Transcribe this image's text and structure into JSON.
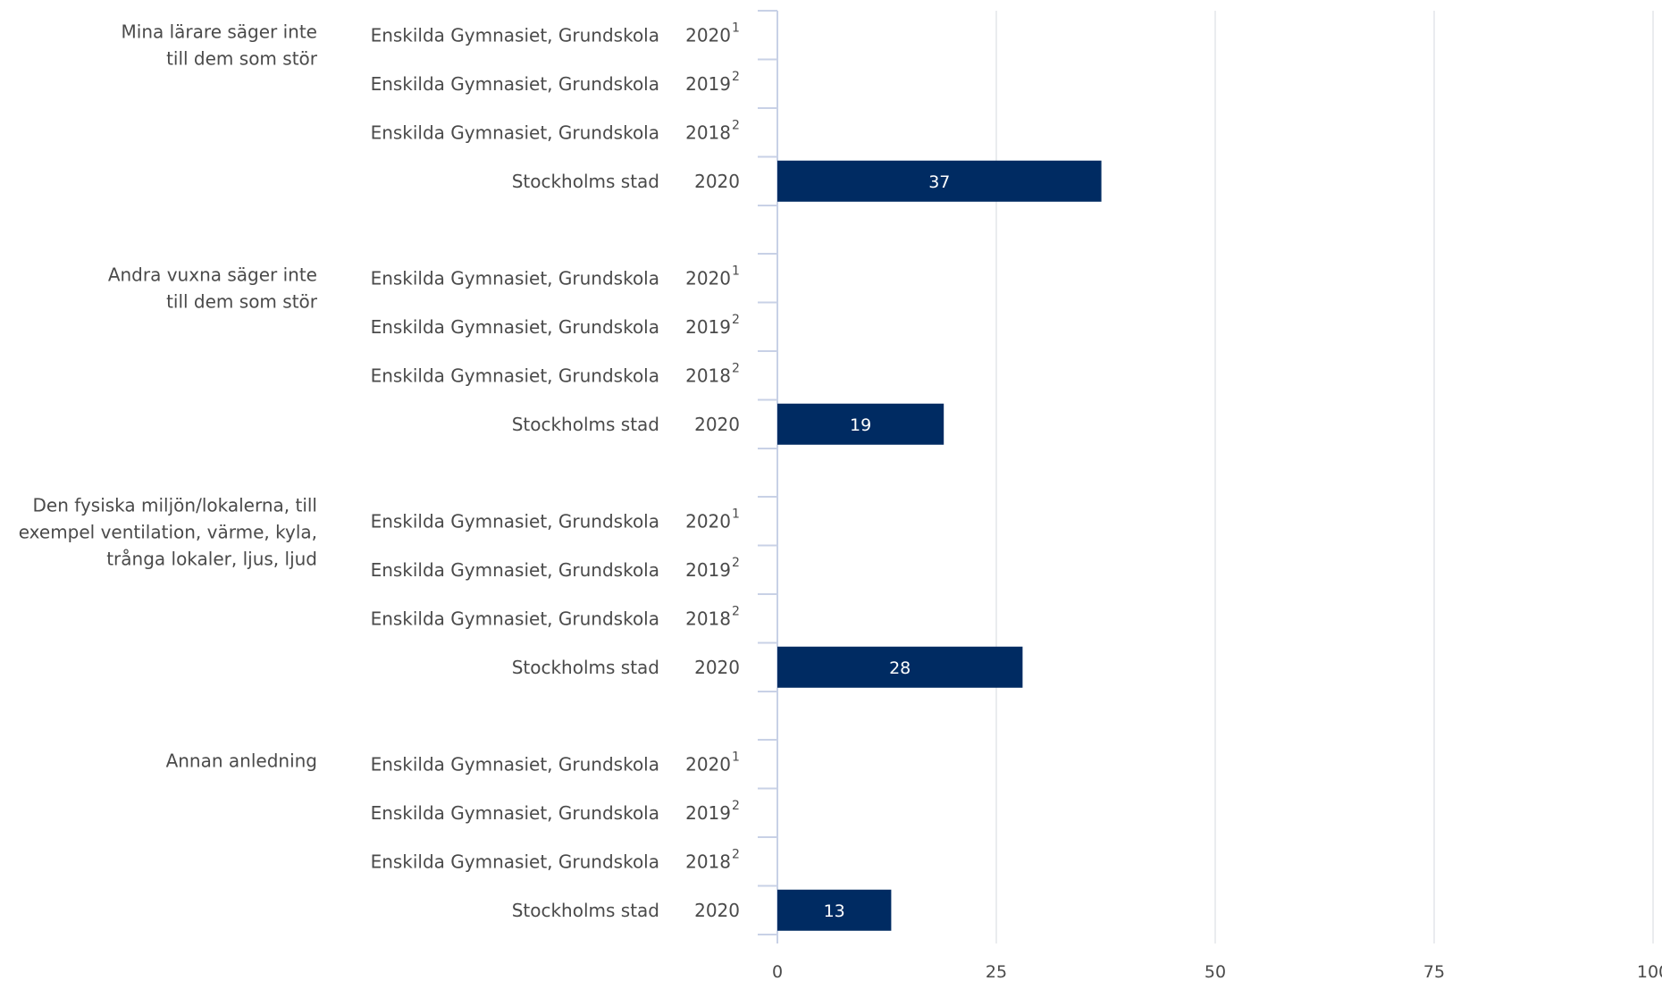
{
  "chart_data": {
    "type": "bar",
    "orientation": "horizontal",
    "xlim": [
      0,
      100
    ],
    "x_ticks": [
      "0",
      "25",
      "50",
      "75",
      "100"
    ],
    "grid": true,
    "bar_color": "#002b62",
    "groups": [
      {
        "label_lines": [
          "Mina lärare säger inte",
          "till dem som stör"
        ],
        "rows": [
          {
            "label": "Enskilda Gymnasiet, Grundskola",
            "year": "2020",
            "footnote": "1",
            "value": null
          },
          {
            "label": "Enskilda Gymnasiet, Grundskola",
            "year": "2019",
            "footnote": "2",
            "value": null
          },
          {
            "label": "Enskilda Gymnasiet, Grundskola",
            "year": "2018",
            "footnote": "2",
            "value": null
          },
          {
            "label": "Stockholms stad",
            "year": "2020",
            "footnote": "",
            "value": 37
          }
        ]
      },
      {
        "label_lines": [
          "Andra vuxna säger inte",
          "till dem som stör"
        ],
        "rows": [
          {
            "label": "Enskilda Gymnasiet, Grundskola",
            "year": "2020",
            "footnote": "1",
            "value": null
          },
          {
            "label": "Enskilda Gymnasiet, Grundskola",
            "year": "2019",
            "footnote": "2",
            "value": null
          },
          {
            "label": "Enskilda Gymnasiet, Grundskola",
            "year": "2018",
            "footnote": "2",
            "value": null
          },
          {
            "label": "Stockholms stad",
            "year": "2020",
            "footnote": "",
            "value": 19
          }
        ]
      },
      {
        "label_lines": [
          "Den fysiska miljön/lokalerna, till",
          "exempel ventilation, värme, kyla,",
          "trånga lokaler, ljus, ljud"
        ],
        "rows": [
          {
            "label": "Enskilda Gymnasiet, Grundskola",
            "year": "2020",
            "footnote": "1",
            "value": null
          },
          {
            "label": "Enskilda Gymnasiet, Grundskola",
            "year": "2019",
            "footnote": "2",
            "value": null
          },
          {
            "label": "Enskilda Gymnasiet, Grundskola",
            "year": "2018",
            "footnote": "2",
            "value": null
          },
          {
            "label": "Stockholms stad",
            "year": "2020",
            "footnote": "",
            "value": 28
          }
        ]
      },
      {
        "label_lines": [
          "Annan anledning"
        ],
        "rows": [
          {
            "label": "Enskilda Gymnasiet, Grundskola",
            "year": "2020",
            "footnote": "1",
            "value": null
          },
          {
            "label": "Enskilda Gymnasiet, Grundskola",
            "year": "2019",
            "footnote": "2",
            "value": null
          },
          {
            "label": "Enskilda Gymnasiet, Grundskola",
            "year": "2018",
            "footnote": "2",
            "value": null
          },
          {
            "label": "Stockholms stad",
            "year": "2020",
            "footnote": "",
            "value": 13
          }
        ]
      }
    ]
  }
}
